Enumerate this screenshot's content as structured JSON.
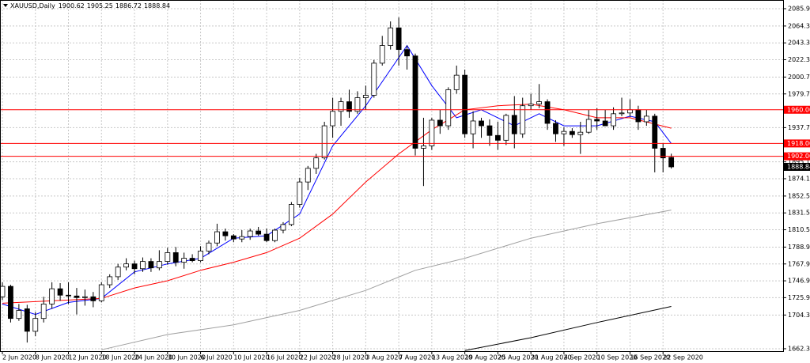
{
  "chart_data": {
    "type": "candlestick",
    "title": "XAUUSD,Daily",
    "categories": [
      "2 Jun 2020",
      null,
      null,
      null,
      "8 Jun 2020",
      null,
      null,
      null,
      "12 Jun 2020",
      null,
      null,
      null,
      "18 Jun 2020",
      null,
      null,
      null,
      "24 Jun 2020",
      null,
      null,
      null,
      "30 Jun 2020",
      null,
      null,
      null,
      "6 Jul 2020",
      null,
      null,
      null,
      "10 Jul 2020",
      null,
      null,
      null,
      "16 Jul 2020",
      null,
      null,
      null,
      "22 Jul 2020",
      null,
      null,
      null,
      "28 Jul 2020",
      null,
      null,
      null,
      "3 Aug 2020",
      null,
      null,
      null,
      "7 Aug 2020",
      null,
      null,
      null,
      "13 Aug 2020",
      null,
      null,
      null,
      "19 Aug 2020",
      null,
      null,
      null,
      "25 Aug 2020",
      null,
      null,
      null,
      "31 Aug 2020",
      null,
      null,
      null,
      "4 Sep 2020",
      null,
      null,
      null,
      "10 Sep 2020",
      null,
      null,
      null,
      "16 Sep 2020",
      null,
      null,
      null,
      "22 Sep 2020",
      null
    ],
    "open": [
      1727,
      1740,
      1700,
      1712,
      1684,
      1700,
      1718,
      1737,
      1729,
      1728,
      1726,
      1727,
      1722,
      1742,
      1752,
      1764,
      1768,
      1762,
      1771,
      1763,
      1771,
      1782,
      1770,
      1775,
      1772,
      1784,
      1794,
      1808,
      1803,
      1799,
      1802,
      1809,
      1805,
      1797,
      1810,
      1817,
      1842,
      1870,
      1887,
      1900,
      1940,
      1958,
      1970,
      1958,
      1975,
      1978,
      2018,
      2040,
      2062,
      2035,
      2027,
      1912,
      1915,
      1947,
      1940,
      1985,
      2003,
      1930,
      1946,
      1940,
      1928,
      1922,
      1953,
      1930,
      1965,
      1967,
      1970,
      1943,
      1930,
      1933,
      1929,
      1932,
      1948,
      1946,
      1940,
      1955,
      1956,
      1960,
      1945,
      1952,
      1912,
      1900.62
    ],
    "high": [
      1745,
      1742,
      1718,
      1717,
      1708,
      1727,
      1745,
      1744,
      1745,
      1738,
      1736,
      1733,
      1745,
      1755,
      1768,
      1775,
      1772,
      1776,
      1775,
      1785,
      1788,
      1789,
      1782,
      1780,
      1790,
      1797,
      1818,
      1812,
      1805,
      1810,
      1812,
      1814,
      1812,
      1812,
      1820,
      1845,
      1875,
      1890,
      1905,
      1945,
      1975,
      1975,
      1985,
      1983,
      1990,
      2022,
      2052,
      2070,
      2075,
      2040,
      2030,
      1950,
      1950,
      1960,
      1988,
      2015,
      2010,
      1958,
      1950,
      1948,
      1945,
      1955,
      1977,
      1975,
      1980,
      1992,
      1973,
      1947,
      1938,
      1937,
      1945,
      1960,
      1962,
      1960,
      1963,
      1975,
      1973,
      1965,
      1960,
      1955,
      1918,
      1905.25
    ],
    "low": [
      1723,
      1695,
      1697,
      1670,
      1678,
      1695,
      1712,
      1722,
      1718,
      1705,
      1716,
      1714,
      1720,
      1738,
      1748,
      1760,
      1755,
      1758,
      1758,
      1760,
      1767,
      1765,
      1762,
      1770,
      1770,
      1780,
      1790,
      1797,
      1795,
      1795,
      1798,
      1803,
      1795,
      1795,
      1806,
      1815,
      1838,
      1860,
      1880,
      1898,
      1925,
      1940,
      1950,
      1955,
      1960,
      1975,
      2015,
      2035,
      2015,
      2010,
      1903,
      1865,
      1910,
      1930,
      1935,
      1980,
      1925,
      1912,
      1925,
      1915,
      1910,
      1916,
      1912,
      1925,
      1960,
      1962,
      1935,
      1920,
      1915,
      1925,
      1905,
      1930,
      1935,
      1940,
      1935,
      1952,
      1951,
      1935,
      1940,
      1882,
      1882,
      1886.72
    ],
    "close": [
      1740,
      1700,
      1710,
      1684,
      1700,
      1718,
      1737,
      1729,
      1728,
      1726,
      1727,
      1722,
      1742,
      1752,
      1764,
      1768,
      1762,
      1771,
      1763,
      1771,
      1782,
      1770,
      1775,
      1772,
      1784,
      1794,
      1808,
      1803,
      1799,
      1802,
      1809,
      1805,
      1797,
      1810,
      1817,
      1842,
      1870,
      1887,
      1900,
      1940,
      1958,
      1970,
      1958,
      1975,
      1978,
      2018,
      2040,
      2062,
      2035,
      2027,
      1912,
      1915,
      1947,
      1940,
      1985,
      2003,
      1930,
      1946,
      1940,
      1928,
      1922,
      1953,
      1930,
      1965,
      1967,
      1970,
      1943,
      1930,
      1933,
      1929,
      1932,
      1948,
      1946,
      1940,
      1955,
      1956,
      1960,
      1945,
      1952,
      1912,
      1900,
      1888.84
    ],
    "ylim": [
      1659.3,
      2096.7
    ],
    "yticks": [
      {
        "value": 2085.9,
        "label": "2085.90"
      },
      {
        "value": 2064.3,
        "label": "2064.30"
      },
      {
        "value": 2043.3,
        "label": "2043.30"
      },
      {
        "value": 2022.3,
        "label": "2022.30"
      },
      {
        "value": 2000.7,
        "label": "2000.70"
      },
      {
        "value": 1979.7,
        "label": "1979.70"
      },
      {
        "value": 1937.7,
        "label": "1937.70"
      },
      {
        "value": 1895.1,
        "label": "1895.10"
      },
      {
        "value": 1874.1,
        "label": "1874.10"
      },
      {
        "value": 1852.5,
        "label": "1852.50"
      },
      {
        "value": 1831.5,
        "label": "1831.50"
      },
      {
        "value": 1810.5,
        "label": "1810.50"
      },
      {
        "value": 1788.9,
        "label": "1788.90"
      },
      {
        "value": 1767.9,
        "label": "1767.90"
      },
      {
        "value": 1746.9,
        "label": "1746.90"
      },
      {
        "value": 1725.9,
        "label": "1725.90"
      },
      {
        "value": 1704.3,
        "label": "1704.30"
      },
      {
        "value": 1662.3,
        "label": "1662.30"
      }
    ],
    "grid": true,
    "levels": [
      {
        "value": 1960,
        "label": "1960.00",
        "color": "#ff0000"
      },
      {
        "value": 1918,
        "label": "1918.00",
        "color": "#ff0000"
      },
      {
        "value": 1902,
        "label": "1902.00",
        "color": "#ff0000"
      }
    ],
    "overlays": [
      {
        "color": "#0000ff",
        "x": [
          0,
          4,
          8,
          12,
          16,
          20,
          24,
          28,
          32,
          36,
          40,
          44,
          47,
          49,
          52,
          55,
          58,
          62,
          65,
          68,
          72,
          76,
          79,
          81
        ],
        "values": [
          1718,
          1705,
          1720,
          1725,
          1758,
          1768,
          1775,
          1800,
          1803,
          1830,
          1915,
          1965,
          2010,
          2040,
          1990,
          1950,
          1960,
          1940,
          1955,
          1940,
          1940,
          1952,
          1945,
          1918
        ]
      },
      {
        "color": "#ff0000",
        "x": [
          0,
          12,
          16,
          20,
          24,
          28,
          32,
          36,
          40,
          44,
          48,
          52,
          56,
          60,
          64,
          68,
          72,
          76,
          81
        ],
        "values": [
          1719,
          1725,
          1738,
          1747,
          1760,
          1770,
          1782,
          1800,
          1830,
          1870,
          1905,
          1935,
          1960,
          1965,
          1967,
          1960,
          1950,
          1950,
          1937
        ]
      },
      {
        "color": "#a0a0a0",
        "x": [
          12,
          20,
          28,
          36,
          44,
          50,
          56,
          64,
          72,
          81
        ],
        "values": [
          1661,
          1680,
          1692,
          1710,
          1735,
          1760,
          1775,
          1800,
          1818,
          1835
        ]
      },
      {
        "color": "#000000",
        "x": [
          56,
          64,
          72,
          81
        ],
        "values": [
          1660,
          1676,
          1695,
          1715
        ]
      }
    ]
  }
}
